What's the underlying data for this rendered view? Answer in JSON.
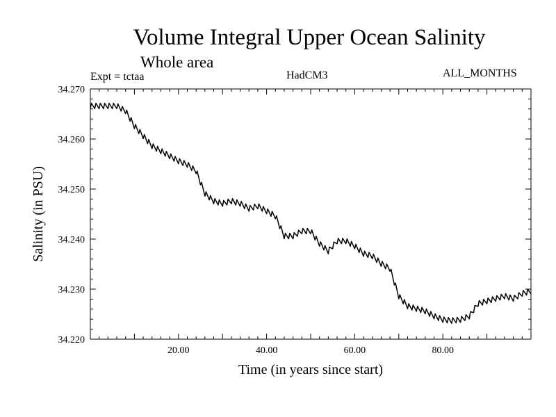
{
  "header": {
    "title": "Volume Integral Upper Ocean Salinity",
    "subtitle": "Whole area",
    "expt": "Expt = tctaa",
    "model": "HadCM3",
    "months": "ALL_MONTHS"
  },
  "chart_data": {
    "type": "line",
    "title": "Volume Integral Upper Ocean Salinity",
    "subtitle": "Whole area",
    "xlabel": "Time (in years since start)",
    "ylabel": "Salinity (in PSU)",
    "xlim": [
      0,
      100
    ],
    "ylim": [
      34.22,
      34.27
    ],
    "x_ticks": [
      20,
      40,
      60,
      80
    ],
    "x_tick_labels": [
      "20.00",
      "40.00",
      "60.00",
      "80.00"
    ],
    "y_ticks": [
      34.22,
      34.23,
      34.24,
      34.25,
      34.26,
      34.27
    ],
    "y_tick_labels": [
      "34.220",
      "34.230",
      "34.240",
      "34.250",
      "34.260",
      "34.270"
    ],
    "grid": false,
    "legend": "none",
    "line_color": "#000000",
    "series": [
      {
        "x": [
          0,
          2,
          4,
          6,
          8,
          10,
          12,
          14,
          16,
          18,
          20,
          22,
          24,
          26,
          28,
          30,
          32,
          34,
          36,
          38,
          40,
          42,
          44,
          46,
          48,
          50,
          52,
          54,
          56,
          58,
          60,
          62,
          64,
          66,
          68,
          70,
          72,
          74,
          76,
          78,
          80,
          82,
          84,
          86,
          88,
          90,
          92,
          94,
          96,
          98,
          100
        ],
        "y": [
          34.2665,
          34.2665,
          34.2665,
          34.2665,
          34.2655,
          34.2625,
          34.2605,
          34.2585,
          34.2575,
          34.2565,
          34.2555,
          34.2548,
          34.2535,
          34.249,
          34.2475,
          34.247,
          34.2475,
          34.247,
          34.246,
          34.2465,
          34.2455,
          34.2445,
          34.2405,
          34.2405,
          34.2415,
          34.2415,
          34.239,
          34.2375,
          34.2395,
          34.2395,
          34.2385,
          34.237,
          34.2365,
          34.235,
          34.234,
          34.2285,
          34.2265,
          34.226,
          34.2255,
          34.2245,
          34.2238,
          34.2236,
          34.2238,
          34.2245,
          34.227,
          34.2275,
          34.228,
          34.2285,
          34.228,
          34.229,
          34.2295
        ],
        "seasonal_amplitude": 0.0011
      }
    ]
  }
}
